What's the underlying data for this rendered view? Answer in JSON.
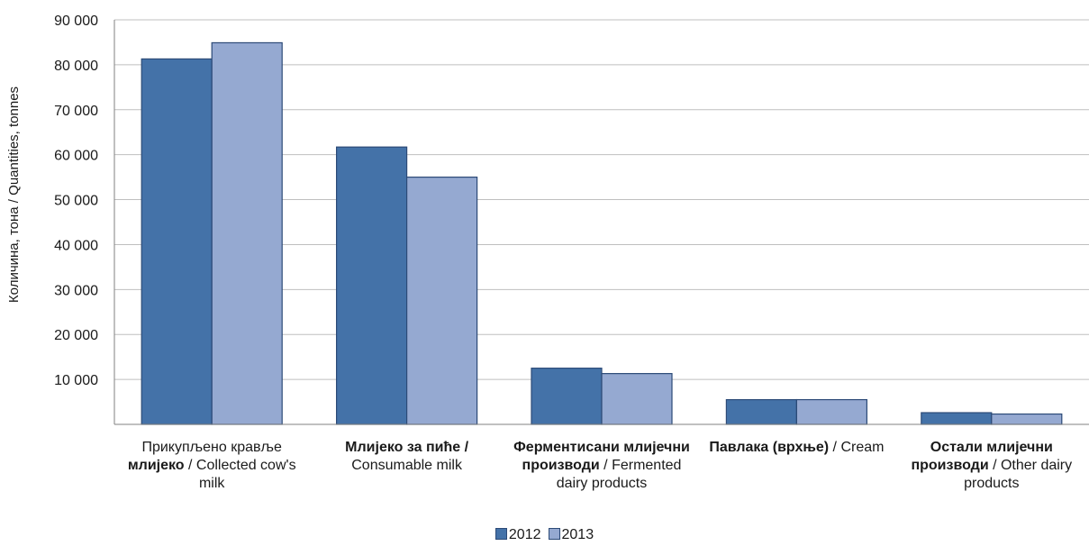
{
  "chart_data": {
    "type": "bar",
    "ylabel": "Количина, тона / Quantities, tonnes",
    "ylim": [
      0,
      90000
    ],
    "yticks": [
      {
        "value": 10000,
        "label": "10 000"
      },
      {
        "value": 20000,
        "label": "20 000"
      },
      {
        "value": 30000,
        "label": "30 000"
      },
      {
        "value": 40000,
        "label": "40 000"
      },
      {
        "value": 50000,
        "label": "50 000"
      },
      {
        "value": 60000,
        "label": "60 000"
      },
      {
        "value": 70000,
        "label": "70 000"
      },
      {
        "value": 80000,
        "label": "80 000"
      },
      {
        "value": 90000,
        "label": "90 000"
      }
    ],
    "grid": true,
    "legend_position": "bottom",
    "categories": [
      {
        "bold": "Прикупљено крављe млијеко",
        "plain": "Collected cow's milk",
        "lines": [
          "Прикупљено кравље",
          "млијеко / Collected cow's",
          "milk"
        ]
      },
      {
        "bold": "Млијеко за пиће",
        "plain": "Consumable milk",
        "lines": [
          "Млијеко за пиће /",
          "Consumable milk"
        ]
      },
      {
        "bold": "Ферментисани млијечни производи",
        "plain": "Fermented dairy products",
        "lines": [
          "Ферментисани млијечни",
          "производи / Fermented",
          "dairy products"
        ]
      },
      {
        "bold": "Павлака (врхње)",
        "plain": "Cream",
        "lines": [
          "Павлака (врхње) / Cream"
        ]
      },
      {
        "bold": "Остали млијечни производи",
        "plain": "Other dairy products",
        "lines": [
          "Остали млијечни",
          "производи / Other dairy",
          "products"
        ]
      }
    ],
    "series": [
      {
        "name": "2012",
        "color": "#4472a8",
        "values": [
          81300,
          61700,
          12500,
          5500,
          2600
        ]
      },
      {
        "name": "2013",
        "color": "#95a9d1",
        "values": [
          84900,
          55000,
          11300,
          5500,
          2300
        ]
      }
    ]
  }
}
